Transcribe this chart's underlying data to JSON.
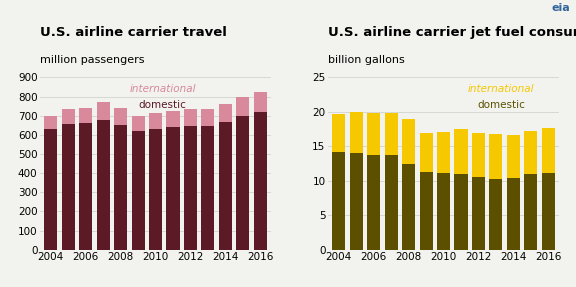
{
  "years": [
    2004,
    2005,
    2006,
    2007,
    2008,
    2009,
    2010,
    2011,
    2012,
    2013,
    2014,
    2015,
    2016
  ],
  "travel_domestic": [
    630,
    655,
    660,
    680,
    650,
    620,
    630,
    640,
    645,
    645,
    665,
    700,
    720
  ],
  "travel_international": [
    70,
    80,
    80,
    90,
    90,
    80,
    85,
    85,
    90,
    90,
    95,
    100,
    105
  ],
  "fuel_domestic": [
    14.2,
    14.0,
    13.8,
    13.8,
    12.5,
    11.3,
    11.1,
    11.0,
    10.5,
    10.3,
    10.4,
    11.0,
    11.2
  ],
  "fuel_international": [
    5.5,
    6.0,
    6.0,
    6.0,
    6.5,
    5.7,
    6.0,
    6.5,
    6.5,
    6.5,
    6.3,
    6.2,
    6.5
  ],
  "travel_domestic_color": "#5c1a26",
  "travel_international_color": "#d8899b",
  "fuel_domestic_color": "#5c5000",
  "fuel_international_color": "#f5c800",
  "chart1_title": "U.S. airline carrier travel",
  "chart1_subtitle": "million passengers",
  "chart1_ylim": [
    0,
    900
  ],
  "chart1_yticks": [
    0,
    100,
    200,
    300,
    400,
    500,
    600,
    700,
    800,
    900
  ],
  "chart2_title": "U.S. airline carrier jet fuel consumption",
  "chart2_subtitle": "billion gallons",
  "chart2_ylim": [
    0,
    25
  ],
  "chart2_yticks": [
    0,
    5,
    10,
    15,
    20,
    25
  ],
  "bg_color": "#f2f2ee",
  "grid_color": "#cccccc",
  "title_fontsize": 9.5,
  "subtitle_fontsize": 8,
  "tick_fontsize": 7.5,
  "legend_fontsize": 7.5
}
